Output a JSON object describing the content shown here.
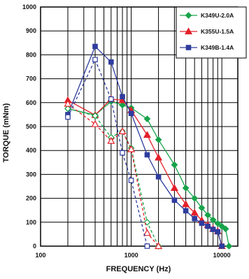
{
  "chart_data": {
    "type": "line",
    "xlabel": "FREQUENCY (Hz)",
    "ylabel": "TORQUE (mNm)",
    "xscale": "log",
    "xlim": [
      100,
      15000
    ],
    "ylim": [
      0,
      1000
    ],
    "x_tick_labels": [
      "100",
      "1000",
      "10000"
    ],
    "y_ticks": [
      0,
      100,
      200,
      300,
      400,
      500,
      600,
      700,
      800,
      900,
      1000
    ],
    "grid": true,
    "legend_position": "top-right",
    "series": [
      {
        "name": "K349U-2.0A",
        "color": "#17a34a",
        "marker": "diamond",
        "style": "solid",
        "x": [
          200,
          400,
          600,
          800,
          1000,
          1500,
          2000,
          3000,
          4000,
          5000,
          6000,
          7000,
          8000,
          9000,
          10000,
          11000,
          12000
        ],
        "y": [
          575,
          548,
          605,
          590,
          578,
          532,
          445,
          340,
          243,
          200,
          160,
          130,
          110,
          95,
          83,
          72,
          0
        ]
      },
      {
        "name": "K355U-1.5A",
        "color": "#e3202a",
        "marker": "triangle",
        "style": "solid",
        "x": [
          200,
          400,
          600,
          800,
          1000,
          1500,
          2000,
          3000,
          4000,
          5000,
          6000,
          7000,
          8000,
          9000,
          10000
        ],
        "y": [
          610,
          548,
          615,
          610,
          568,
          465,
          370,
          243,
          175,
          140,
          108,
          88,
          72,
          62,
          0
        ]
      },
      {
        "name": "K349B-1.4A",
        "color": "#2e3c9e",
        "marker": "square",
        "style": "solid",
        "x": [
          200,
          400,
          600,
          800,
          1000,
          1500,
          2000,
          3000,
          4000,
          5000,
          6000,
          7000,
          8000,
          9000,
          10000
        ],
        "y": [
          550,
          835,
          770,
          625,
          555,
          382,
          290,
          192,
          148,
          115,
          96,
          83,
          70,
          60,
          0
        ]
      },
      {
        "name": "K349U-2.0A (dashed)",
        "color": "#17a34a",
        "marker": "diamond",
        "style": "dashed",
        "x": [
          200,
          400,
          600,
          800,
          1000,
          1500,
          2000
        ],
        "y": [
          575,
          545,
          455,
          480,
          410,
          100,
          0
        ]
      },
      {
        "name": "K355U-1.5A (dashed)",
        "color": "#e3202a",
        "marker": "triangle",
        "style": "dashed",
        "x": [
          200,
          400,
          600,
          800,
          1000,
          1500,
          2000
        ],
        "y": [
          595,
          510,
          440,
          480,
          405,
          55,
          0
        ]
      },
      {
        "name": "K349B-1.4A (dashed)",
        "color": "#2e3c9e",
        "marker": "square",
        "style": "dashed",
        "x": [
          200,
          400,
          600,
          800,
          1000,
          1500
        ],
        "y": [
          540,
          780,
          615,
          390,
          275,
          0
        ]
      }
    ],
    "legend": [
      "K349U-2.0A",
      "K355U-1.5A",
      "K349B-1.4A"
    ]
  }
}
